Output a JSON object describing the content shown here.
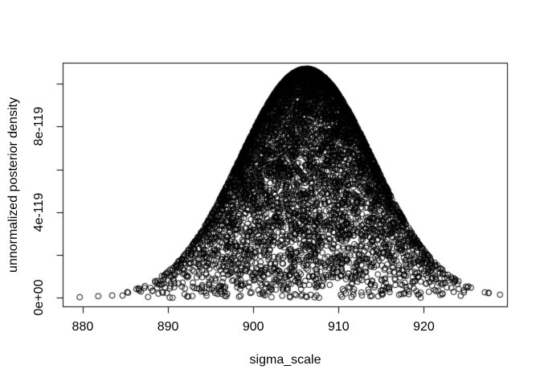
{
  "figure": {
    "background": "#ffffff",
    "foreground": "#000000"
  },
  "chart_data": {
    "type": "scatter",
    "title": "",
    "xlabel": "sigma_scale",
    "ylabel": "unnormalized posterior density",
    "xlim": [
      877.7,
      929.8
    ],
    "ylim": [
      -4.2e-120,
      1.096e-118
    ],
    "grid": false,
    "legend": null,
    "x_ticks": [
      {
        "value": 880,
        "label": "880"
      },
      {
        "value": 890,
        "label": "890"
      },
      {
        "value": 900,
        "label": "900"
      },
      {
        "value": 910,
        "label": "910"
      },
      {
        "value": 920,
        "label": "920"
      }
    ],
    "y_ticks": [
      {
        "value": 0,
        "label": "0e+00"
      },
      {
        "value": 2e-119,
        "label": ""
      },
      {
        "value": 4e-119,
        "label": "4e-119"
      },
      {
        "value": 6e-119,
        "label": ""
      },
      {
        "value": 8e-119,
        "label": "8e-119"
      },
      {
        "value": 1e-118,
        "label": ""
      }
    ],
    "marker": {
      "shape": "open-circle",
      "radius_px": 3.4,
      "color": "#000000",
      "stroke_px": 1
    },
    "n_points": 6000,
    "points_model": {
      "description": "posterior draws: y = envelope(sigma) * exp(-z^2/2), z ~ N(0,1); envelope(sigma) = peak * exp(-(sigma-mean)^2 / (2*envelope_sd^2))",
      "x_mean": 906.2,
      "x_sd": 6.5,
      "x_tail_sd": 10,
      "x_tail_fraction": 0.02,
      "envelope_peak": 1.07e-118,
      "envelope_sd": 7.8,
      "seed": 42
    },
    "observed_extremes": {
      "x_min": 879.6,
      "x_max": 927.9,
      "y_peak": 1.07e-118,
      "peak_at_x": 906.2
    }
  }
}
